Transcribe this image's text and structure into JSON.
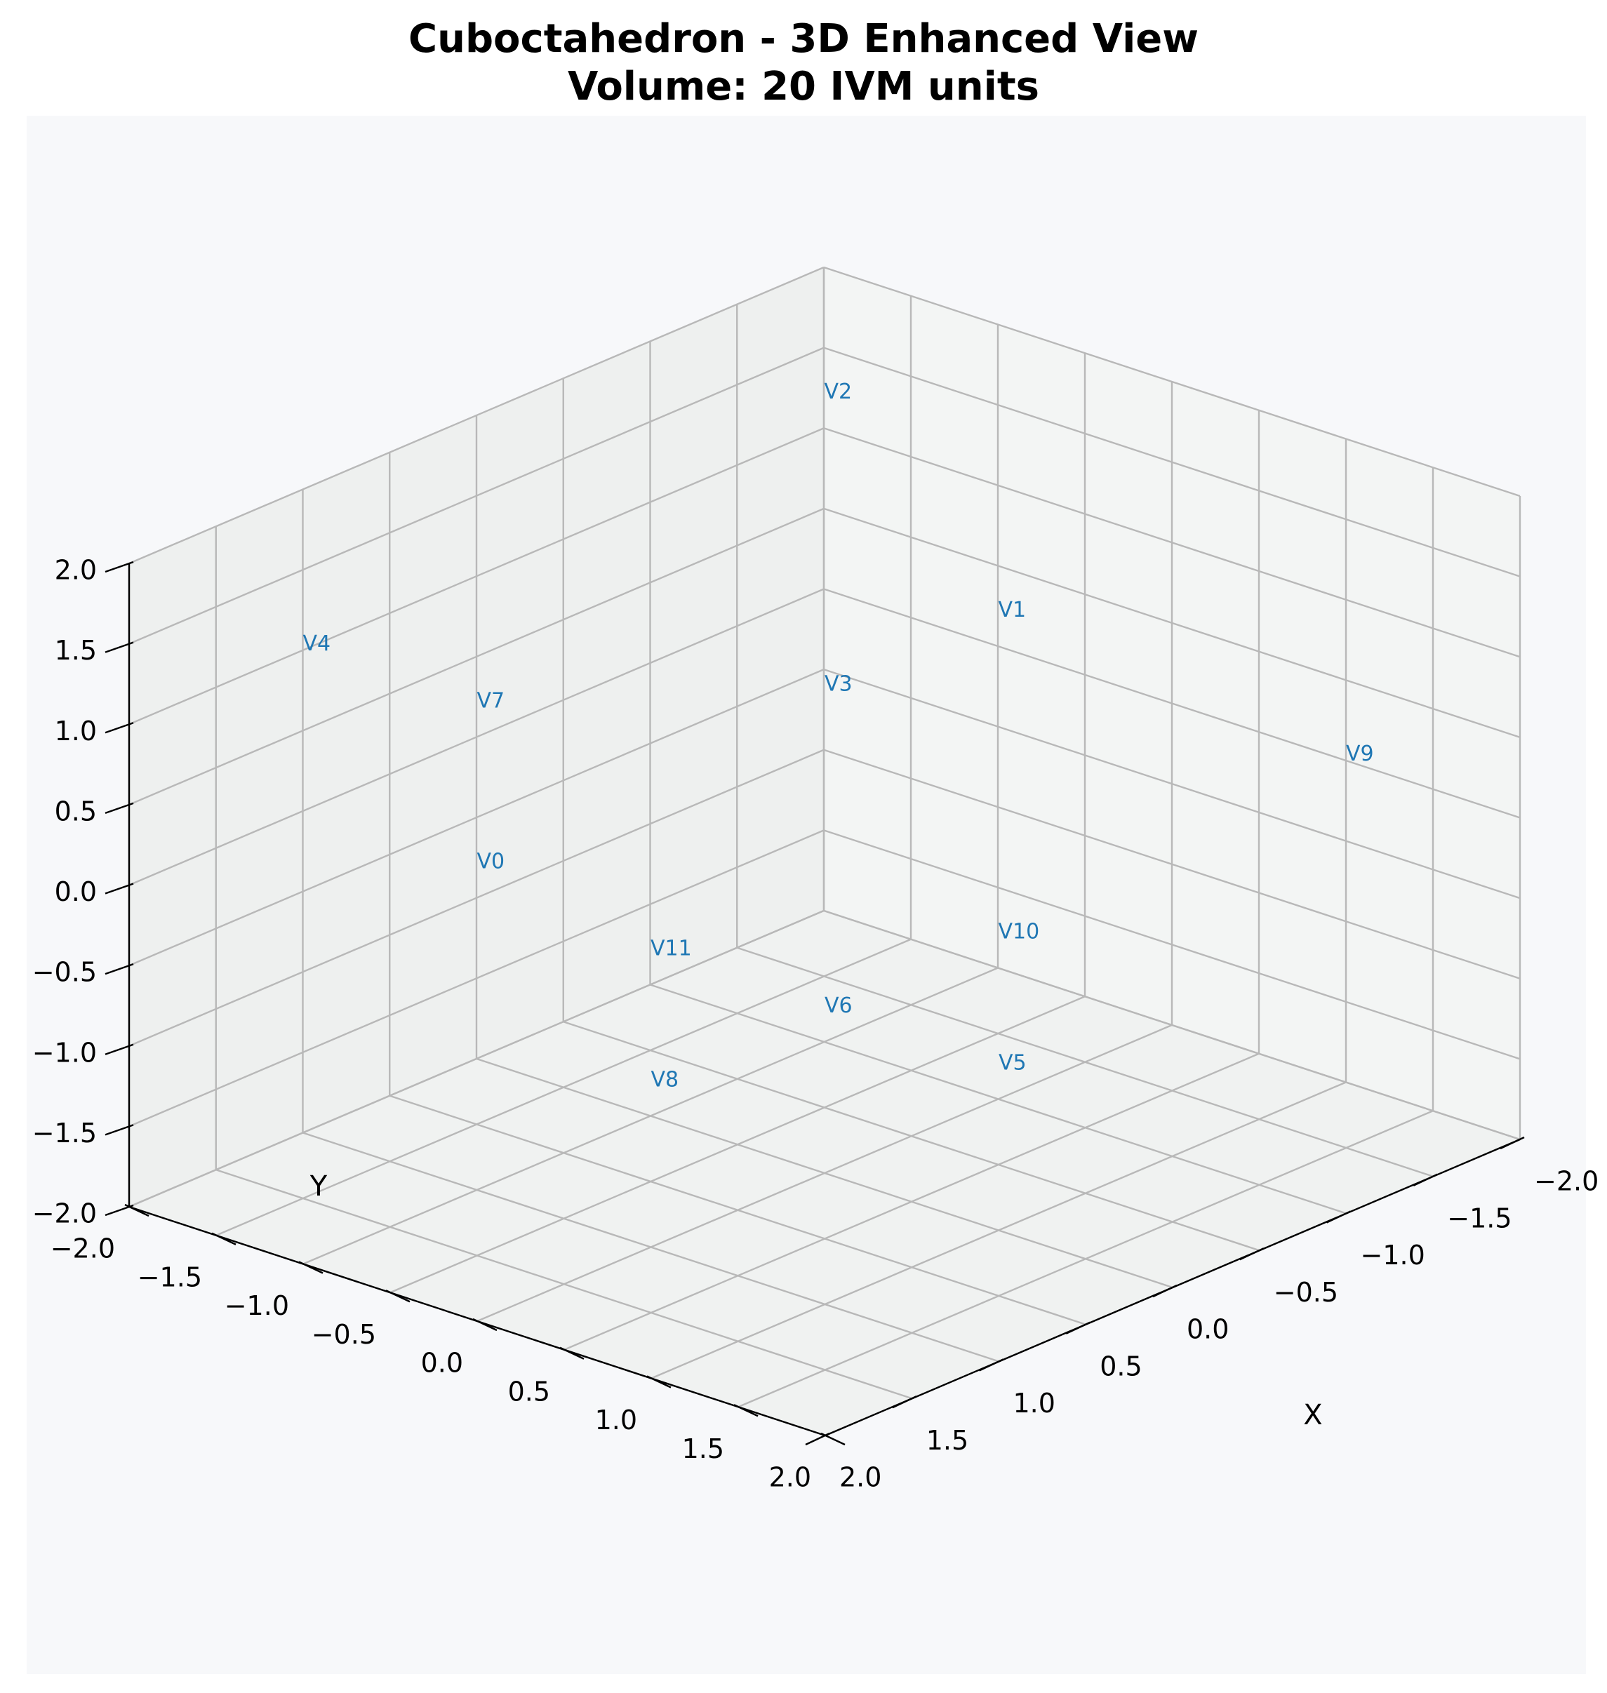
{
  "chart_data": {
    "type": "scatter3d",
    "title": "Cuboctahedron - 3D Enhanced View",
    "subtitle": "Volume: 20 IVM units",
    "xlabel": "X",
    "ylabel": "Y",
    "zlabel": "",
    "xlim": [
      -2,
      2
    ],
    "ylim": [
      -2,
      2
    ],
    "zlim": [
      -2,
      2
    ],
    "xticks": [
      "−2.0",
      "−1.5",
      "−1.0",
      "−0.5",
      "0.0",
      "0.5",
      "1.0",
      "1.5",
      "2.0"
    ],
    "yticks": [
      "−2.0",
      "−1.5",
      "−1.0",
      "−0.5",
      "0.0",
      "0.5",
      "1.0",
      "1.5",
      "2.0"
    ],
    "zticks": [
      "−2.0",
      "−1.5",
      "−1.0",
      "−0.5",
      "0.0",
      "0.5",
      "1.0",
      "1.5",
      "2.0"
    ],
    "grid": true,
    "label_color": "#1f77b4",
    "points": [
      {
        "label": "V0",
        "x": 1,
        "y": -1,
        "z": 0
      },
      {
        "label": "V1",
        "x": -1,
        "y": 0,
        "z": 1
      },
      {
        "label": "V2",
        "x": -1,
        "y": -1,
        "z": 2
      },
      {
        "label": "V3",
        "x": 0,
        "y": 0,
        "z": 1
      },
      {
        "label": "V4",
        "x": 1,
        "y": -2,
        "z": 1
      },
      {
        "label": "V5",
        "x": 0,
        "y": 1,
        "z": -1
      },
      {
        "label": "V6",
        "x": 0,
        "y": 0,
        "z": -1
      },
      {
        "label": "V7",
        "x": 1,
        "y": -1,
        "z": 1
      },
      {
        "label": "V8",
        "x": 1,
        "y": 0,
        "z": -1
      },
      {
        "label": "V9",
        "x": -2,
        "y": 1,
        "z": 0
      },
      {
        "label": "V10",
        "x": -1,
        "y": 0,
        "z": -1
      },
      {
        "label": "V11",
        "x": 0,
        "y": -1,
        "z": -1
      }
    ]
  }
}
